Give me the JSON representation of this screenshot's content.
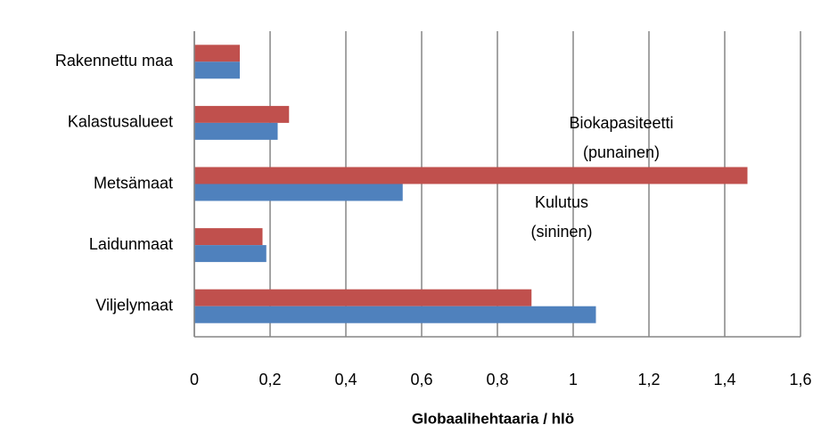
{
  "chart_data": {
    "type": "hbar",
    "x_label": "Globaalihehtaaria  / hlö",
    "annotations": [
      [
        "Biokapasiteetti",
        "(punainen)"
      ],
      [
        "Kulutus",
        "(sininen)"
      ]
    ],
    "categories": [
      "Rakennettu maa",
      "Kalastusalueet",
      "Metsämaat",
      "Laidunmaat",
      "Viljelymaat"
    ],
    "series": [
      {
        "color": "#c0504d",
        "values": [
          0.12,
          0.25,
          1.46,
          0.18,
          0.89
        ]
      },
      {
        "color": "#4f81bd",
        "values": [
          0.12,
          0.22,
          0.55,
          0.19,
          1.06
        ]
      }
    ],
    "xlim": [
      0,
      1.6
    ],
    "xticks": [
      0,
      {
        "value": 0.2,
        "label": "0,2"
      },
      {
        "value": 0.4,
        "label": "0,4"
      },
      {
        "value": 0.6,
        "label": "0,6"
      },
      {
        "value": 0.8,
        "label": "0,8"
      },
      1,
      {
        "value": 1.2,
        "label": "1,2"
      },
      {
        "value": 1.4,
        "label": "1,4"
      },
      {
        "value": 1.6,
        "label": "1,6"
      }
    ],
    "grid": true
  }
}
